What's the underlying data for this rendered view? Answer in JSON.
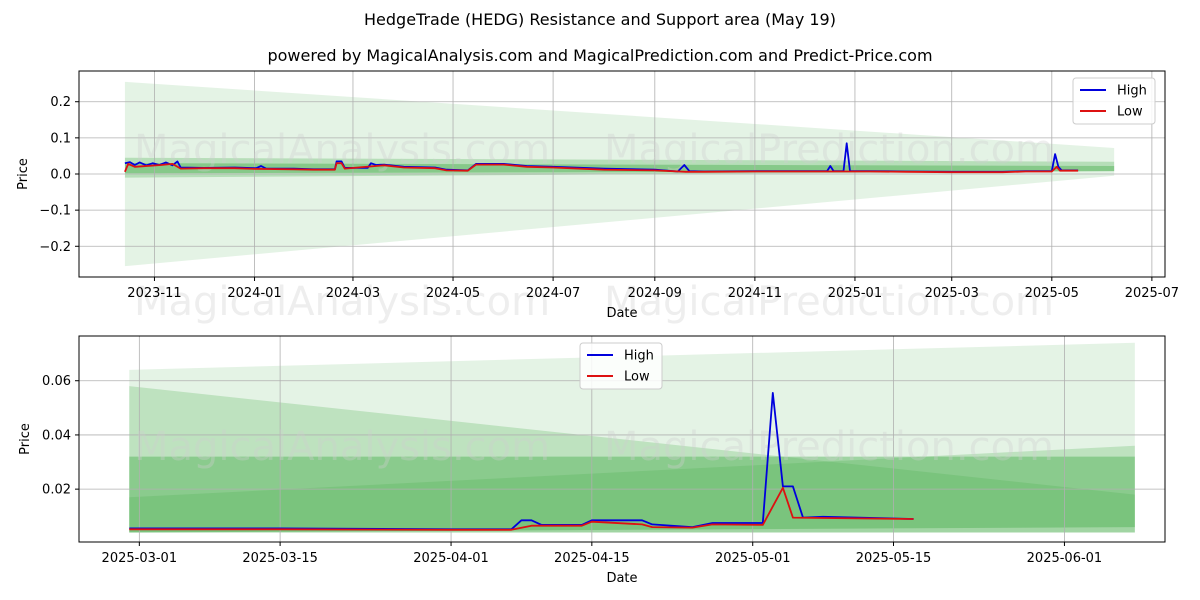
{
  "title": "HedgeTrade (HEDG) Resistance and Support area (May 19)",
  "subtitle": "powered by MagicalAnalysis.com and MagicalPrediction.com and Predict-Price.com",
  "watermarks": [
    "MagicalAnalysis.com",
    "MagicalPrediction.com"
  ],
  "colors": {
    "high": "#0000dd",
    "low": "#dd1111",
    "band": "#4caf50"
  },
  "chart_data": [
    {
      "type": "line",
      "xlabel": "Date",
      "ylabel": "Price",
      "xlim": [
        "2023-09-16",
        "2025-07-09"
      ],
      "ylim": [
        -0.285,
        0.285
      ],
      "grid": true,
      "legend": "top-right",
      "x_tick_labels": [
        "2023-11",
        "2024-01",
        "2024-03",
        "2024-05",
        "2024-07",
        "2024-09",
        "2024-11",
        "2025-01",
        "2025-03",
        "2025-05",
        "2025-07"
      ],
      "x_tick_dates": [
        "2023-11-01",
        "2024-01-01",
        "2024-03-01",
        "2024-05-01",
        "2024-07-01",
        "2024-09-01",
        "2024-11-01",
        "2025-01-01",
        "2025-03-01",
        "2025-05-01",
        "2025-07-01"
      ],
      "y_ticks": [
        -0.2,
        -0.1,
        0.0,
        0.1,
        0.2
      ],
      "y_tick_labels": [
        "−0.2",
        "−0.1",
        "0.0",
        "0.1",
        "0.2"
      ],
      "bands": [
        {
          "x0": "2023-10-14",
          "x1": "2025-06-08",
          "top0": 0.255,
          "top1": 0.072,
          "bot0": -0.255,
          "bot1": -0.005,
          "opacity": 0.15
        },
        {
          "x0": "2023-10-14",
          "x1": "2025-06-08",
          "top0": 0.045,
          "top1": 0.034,
          "bot0": -0.01,
          "bot1": 0.008,
          "opacity": 0.3
        },
        {
          "x0": "2023-10-14",
          "x1": "2025-06-08",
          "top0": 0.03,
          "top1": 0.022,
          "bot0": 0.002,
          "bot1": 0.008,
          "opacity": 0.45
        }
      ],
      "series": [
        {
          "name": "High",
          "points": [
            [
              "2023-10-14",
              0.03
            ],
            [
              "2023-10-17",
              0.033
            ],
            [
              "2023-10-20",
              0.025
            ],
            [
              "2023-10-23",
              0.032
            ],
            [
              "2023-10-27",
              0.024
            ],
            [
              "2023-10-31",
              0.03
            ],
            [
              "2023-11-04",
              0.025
            ],
            [
              "2023-11-08",
              0.032
            ],
            [
              "2023-11-12",
              0.024
            ],
            [
              "2023-11-15",
              0.035
            ],
            [
              "2023-11-17",
              0.018
            ],
            [
              "2023-12-01",
              0.017
            ],
            [
              "2023-12-20",
              0.018
            ],
            [
              "2024-01-02",
              0.016
            ],
            [
              "2024-01-05",
              0.022
            ],
            [
              "2024-01-08",
              0.015
            ],
            [
              "2024-01-25",
              0.015
            ],
            [
              "2024-02-06",
              0.013
            ],
            [
              "2024-02-19",
              0.013
            ],
            [
              "2024-02-20",
              0.035
            ],
            [
              "2024-02-23",
              0.035
            ],
            [
              "2024-02-25",
              0.017
            ],
            [
              "2024-03-10",
              0.017
            ],
            [
              "2024-03-12",
              0.03
            ],
            [
              "2024-03-15",
              0.025
            ],
            [
              "2024-03-20",
              0.026
            ],
            [
              "2024-04-01",
              0.02
            ],
            [
              "2024-04-20",
              0.018
            ],
            [
              "2024-04-27",
              0.012
            ],
            [
              "2024-05-10",
              0.01
            ],
            [
              "2024-05-15",
              0.028
            ],
            [
              "2024-06-01",
              0.028
            ],
            [
              "2024-06-15",
              0.022
            ],
            [
              "2024-07-01",
              0.02
            ],
            [
              "2024-08-01",
              0.015
            ],
            [
              "2024-09-01",
              0.012
            ],
            [
              "2024-09-15",
              0.007
            ],
            [
              "2024-09-19",
              0.025
            ],
            [
              "2024-09-22",
              0.008
            ],
            [
              "2024-10-01",
              0.007
            ],
            [
              "2024-11-01",
              0.008
            ],
            [
              "2024-12-15",
              0.008
            ],
            [
              "2024-12-17",
              0.022
            ],
            [
              "2024-12-19",
              0.008
            ],
            [
              "2024-12-25",
              0.008
            ],
            [
              "2024-12-27",
              0.085
            ],
            [
              "2024-12-29",
              0.008
            ],
            [
              "2025-01-10",
              0.008
            ],
            [
              "2025-02-01",
              0.007
            ],
            [
              "2025-03-01",
              0.006
            ],
            [
              "2025-04-01",
              0.006
            ],
            [
              "2025-04-15",
              0.008
            ],
            [
              "2025-05-01",
              0.008
            ],
            [
              "2025-05-03",
              0.055
            ],
            [
              "2025-05-05",
              0.02
            ],
            [
              "2025-05-07",
              0.01
            ],
            [
              "2025-05-17",
              0.01
            ]
          ]
        },
        {
          "name": "Low",
          "points": [
            [
              "2023-10-14",
              0.006
            ],
            [
              "2023-10-16",
              0.028
            ],
            [
              "2023-10-20",
              0.02
            ],
            [
              "2023-11-05",
              0.025
            ],
            [
              "2023-11-12",
              0.028
            ],
            [
              "2023-11-17",
              0.015
            ],
            [
              "2023-12-01",
              0.016
            ],
            [
              "2023-12-20",
              0.016
            ],
            [
              "2024-01-02",
              0.014
            ],
            [
              "2024-01-25",
              0.013
            ],
            [
              "2024-02-06",
              0.012
            ],
            [
              "2024-02-19",
              0.012
            ],
            [
              "2024-02-20",
              0.03
            ],
            [
              "2024-02-23",
              0.03
            ],
            [
              "2024-02-25",
              0.015
            ],
            [
              "2024-03-15",
              0.022
            ],
            [
              "2024-03-20",
              0.024
            ],
            [
              "2024-04-01",
              0.018
            ],
            [
              "2024-04-20",
              0.016
            ],
            [
              "2024-04-27",
              0.01
            ],
            [
              "2024-05-10",
              0.009
            ],
            [
              "2024-05-15",
              0.026
            ],
            [
              "2024-06-01",
              0.026
            ],
            [
              "2024-06-15",
              0.02
            ],
            [
              "2024-07-01",
              0.018
            ],
            [
              "2024-08-01",
              0.012
            ],
            [
              "2024-09-01",
              0.01
            ],
            [
              "2024-09-20",
              0.006
            ],
            [
              "2024-10-01",
              0.006
            ],
            [
              "2024-11-01",
              0.007
            ],
            [
              "2024-12-01",
              0.007
            ],
            [
              "2025-01-10",
              0.007
            ],
            [
              "2025-02-01",
              0.006
            ],
            [
              "2025-03-01",
              0.005
            ],
            [
              "2025-04-01",
              0.005
            ],
            [
              "2025-04-15",
              0.007
            ],
            [
              "2025-05-01",
              0.007
            ],
            [
              "2025-05-04",
              0.02
            ],
            [
              "2025-05-06",
              0.009
            ],
            [
              "2025-05-17",
              0.009
            ]
          ]
        }
      ]
    },
    {
      "type": "line",
      "xlabel": "Date",
      "ylabel": "Price",
      "xlim": [
        "2025-02-23",
        "2025-06-11"
      ],
      "ylim": [
        0.0005,
        0.0765
      ],
      "grid": true,
      "legend": "top-center",
      "x_tick_labels": [
        "2025-03-01",
        "2025-03-15",
        "2025-04-01",
        "2025-04-15",
        "2025-05-01",
        "2025-05-15",
        "2025-06-01"
      ],
      "x_tick_dates": [
        "2025-03-01",
        "2025-03-15",
        "2025-04-01",
        "2025-04-15",
        "2025-05-01",
        "2025-05-15",
        "2025-06-01"
      ],
      "y_ticks": [
        0.02,
        0.04,
        0.06
      ],
      "y_tick_labels": [
        "0.02",
        "0.04",
        "0.06"
      ],
      "bands": [
        {
          "x0": "2025-02-28",
          "x1": "2025-06-08",
          "top0": 0.064,
          "top1": 0.074,
          "bot0": 0.004,
          "bot1": 0.004,
          "opacity": 0.15
        },
        {
          "x0": "2025-02-28",
          "x1": "2025-06-08",
          "top0": 0.058,
          "top1": 0.018,
          "bot0": 0.004,
          "bot1": 0.004,
          "opacity": 0.25
        },
        {
          "x0": "2025-02-28",
          "x1": "2025-06-08",
          "top0": 0.017,
          "top1": 0.036,
          "bot0": 0.004,
          "bot1": 0.004,
          "opacity": 0.25
        },
        {
          "x0": "2025-02-28",
          "x1": "2025-06-08",
          "top0": 0.032,
          "top1": 0.032,
          "bot0": 0.004,
          "bot1": 0.006,
          "opacity": 0.45
        }
      ],
      "series": [
        {
          "name": "High",
          "points": [
            [
              "2025-02-28",
              0.0055
            ],
            [
              "2025-03-15",
              0.0055
            ],
            [
              "2025-04-01",
              0.0052
            ],
            [
              "2025-04-07",
              0.0052
            ],
            [
              "2025-04-08",
              0.0085
            ],
            [
              "2025-04-09",
              0.0085
            ],
            [
              "2025-04-10",
              0.0068
            ],
            [
              "2025-04-14",
              0.0068
            ],
            [
              "2025-04-15",
              0.0085
            ],
            [
              "2025-04-20",
              0.0085
            ],
            [
              "2025-04-21",
              0.007
            ],
            [
              "2025-04-25",
              0.006
            ],
            [
              "2025-04-27",
              0.0075
            ],
            [
              "2025-05-02",
              0.0075
            ],
            [
              "2025-05-03",
              0.0555
            ],
            [
              "2025-05-04",
              0.021
            ],
            [
              "2025-05-05",
              0.021
            ],
            [
              "2025-05-06",
              0.0095
            ],
            [
              "2025-05-08",
              0.0098
            ],
            [
              "2025-05-17",
              0.009
            ]
          ]
        },
        {
          "name": "Low",
          "points": [
            [
              "2025-02-28",
              0.0052
            ],
            [
              "2025-03-15",
              0.0052
            ],
            [
              "2025-04-01",
              0.005
            ],
            [
              "2025-04-07",
              0.005
            ],
            [
              "2025-04-09",
              0.0065
            ],
            [
              "2025-04-14",
              0.0065
            ],
            [
              "2025-04-15",
              0.008
            ],
            [
              "2025-04-20",
              0.007
            ],
            [
              "2025-04-21",
              0.006
            ],
            [
              "2025-04-25",
              0.0058
            ],
            [
              "2025-04-27",
              0.007
            ],
            [
              "2025-05-02",
              0.0068
            ],
            [
              "2025-05-04",
              0.0205
            ],
            [
              "2025-05-05",
              0.0095
            ],
            [
              "2025-05-17",
              0.009
            ]
          ]
        }
      ]
    }
  ]
}
